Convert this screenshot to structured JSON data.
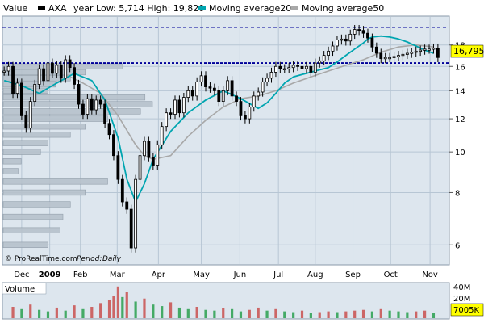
{
  "colors": {
    "panel_bg": "#dde6ee",
    "grid": "#b7c6d4",
    "price": "#000000",
    "ma20": "#00a5b0",
    "ma50": "#a8a8a8",
    "volume_up": "#cc6666",
    "volume_down": "#44aa66",
    "level_line": "#000099",
    "profile_bar": "#b7c2cc"
  },
  "header": {
    "value_label": "Value",
    "symbol": "AXA",
    "range_text": "year Low: 5,714 High: 19,820",
    "ma20_label": "Moving average20",
    "ma50_label": "Moving average50"
  },
  "footer": {
    "copyright": "© ProRealTime.com",
    "period_label": "Period:",
    "period_value": "Daily"
  },
  "volume": {
    "label": "Volume",
    "axis_max_label": "40M",
    "axis_mid_label": "20M",
    "last_value_label": "7005K"
  },
  "last_price_label": "16,795",
  "chart_data": {
    "type": "line",
    "title": "AXA",
    "scale": "log",
    "ylim": [
      5.4,
      21
    ],
    "y_ticks": [
      6,
      8,
      10,
      12,
      14,
      16,
      18
    ],
    "x_tick_labels": [
      "Dec",
      "2009",
      "Feb",
      "Mar",
      "Apr",
      "May",
      "Jun",
      "Jul",
      "Aug",
      "Sep",
      "Oct",
      "Nov"
    ],
    "x_tick_positions": [
      1,
      4.2,
      7.7,
      11.9,
      16.6,
      21.5,
      25.9,
      30.3,
      34.5,
      38.8,
      43.1,
      47.6
    ],
    "x_range": [
      -1.2,
      49.8
    ],
    "reference_levels": [
      19.82,
      16.3
    ],
    "series": [
      {
        "name": "AXA",
        "x": [
          -1,
          -0.5,
          0,
          0.5,
          1,
          1.5,
          2,
          2.5,
          3,
          3.5,
          4,
          4.5,
          5,
          5.5,
          6,
          6.5,
          7,
          7.5,
          8,
          8.5,
          9,
          9.5,
          10,
          10.5,
          11,
          11.5,
          12,
          12.5,
          13,
          13.5,
          14,
          14.5,
          15,
          15.5,
          16,
          16.5,
          17,
          17.5,
          18,
          18.5,
          19,
          19.5,
          20,
          20.5,
          21,
          21.5,
          22,
          22.5,
          23,
          23.5,
          24,
          24.5,
          25,
          25.5,
          26,
          26.5,
          27,
          27.5,
          28,
          28.5,
          29,
          29.5,
          30,
          30.5,
          31,
          31.5,
          32,
          32.5,
          33,
          33.5,
          34,
          34.5,
          35,
          35.5,
          36,
          36.5,
          37,
          37.5,
          38,
          38.5,
          39,
          39.5,
          40,
          40.5,
          41,
          41.5,
          42,
          42.5,
          43,
          43.5,
          44,
          44.5,
          45,
          45.5,
          46,
          46.5,
          47,
          47.5,
          48,
          48.5
        ],
        "values": [
          15.6,
          16.0,
          13.8,
          14.6,
          12.2,
          11.4,
          13.2,
          14.5,
          15.8,
          14.8,
          16.3,
          15.4,
          16.1,
          15.0,
          16.6,
          15.9,
          14.5,
          13.0,
          12.3,
          13.4,
          12.6,
          13.3,
          13.0,
          11.7,
          11.0,
          9.8,
          8.6,
          7.6,
          7.3,
          5.9,
          8.6,
          9.8,
          10.6,
          9.7,
          9.3,
          10.4,
          11.5,
          12.4,
          12.3,
          13.3,
          12.4,
          13.5,
          14.0,
          13.6,
          14.7,
          15.2,
          14.3,
          14.2,
          14.0,
          13.2,
          14.0,
          14.8,
          13.6,
          13.2,
          12.2,
          12.0,
          12.8,
          13.6,
          13.9,
          14.7,
          15.0,
          15.5,
          16.0,
          15.8,
          15.8,
          15.9,
          16.1,
          16.0,
          15.8,
          16.0,
          15.5,
          16.3,
          16.5,
          17.0,
          17.4,
          17.9,
          18.5,
          18.6,
          18.4,
          19.1,
          19.6,
          19.5,
          19.2,
          18.7,
          17.8,
          17.2,
          16.7,
          16.8,
          16.8,
          16.9,
          17.0,
          17.1,
          17.2,
          17.3,
          17.4,
          17.5,
          17.6,
          17.6,
          17.7,
          16.8
        ]
      },
      {
        "name": "Moving average20",
        "x": [
          -1,
          1,
          3,
          5,
          7,
          9,
          10.5,
          12,
          13,
          14,
          15,
          16,
          18,
          20,
          22,
          24,
          25,
          26,
          28,
          29,
          30,
          31,
          32,
          33,
          34,
          35,
          36,
          37,
          38,
          39,
          40,
          40.5,
          41,
          42,
          43,
          44,
          45,
          46,
          47,
          48
        ],
        "values": [
          14.8,
          14.4,
          13.8,
          14.6,
          15.4,
          14.8,
          13.3,
          10.8,
          8.6,
          7.6,
          8.4,
          9.6,
          11.2,
          12.4,
          13.3,
          14.0,
          13.7,
          13.4,
          12.7,
          13.1,
          13.8,
          14.6,
          15.1,
          15.3,
          15.5,
          15.7,
          15.9,
          16.4,
          17.0,
          17.6,
          18.2,
          18.6,
          18.8,
          18.9,
          18.8,
          18.6,
          18.3,
          17.9,
          17.5,
          17.2
        ]
      },
      {
        "name": "Moving average50",
        "x": [
          6,
          8,
          10,
          12,
          14,
          15,
          16,
          18,
          20,
          22,
          24,
          26,
          28,
          30,
          32,
          34,
          36,
          38,
          40,
          42,
          44,
          46,
          48
        ],
        "values": [
          15.3,
          14.6,
          13.8,
          12.2,
          10.4,
          9.8,
          9.6,
          9.8,
          10.9,
          11.9,
          12.8,
          13.4,
          13.6,
          14.0,
          14.6,
          15.1,
          15.6,
          16.1,
          16.6,
          17.3,
          17.8,
          18.0,
          17.8
        ]
      }
    ],
    "volume_series": {
      "name": "Volume",
      "unit": "M",
      "ylim": [
        0,
        45
      ],
      "x": [
        0,
        1,
        2,
        3,
        4,
        5,
        6,
        7,
        8,
        9,
        10,
        11,
        11.5,
        12,
        12.5,
        13,
        14,
        15,
        16,
        17,
        18,
        19,
        20,
        21,
        22,
        23,
        24,
        25,
        26,
        27,
        28,
        29,
        30,
        31,
        32,
        33,
        34,
        35,
        36,
        37,
        38,
        39,
        40,
        41,
        42,
        43,
        44,
        45,
        46,
        47,
        48
      ],
      "values": [
        15,
        12,
        18,
        11,
        9,
        14,
        10,
        17,
        12,
        15,
        20,
        24,
        30,
        42,
        28,
        35,
        22,
        26,
        18,
        16,
        21,
        14,
        12,
        15,
        11,
        10,
        13,
        12,
        9,
        11,
        14,
        10,
        12,
        9,
        8,
        10,
        7,
        8,
        9,
        8,
        9,
        10,
        11,
        9,
        12,
        10,
        9,
        8,
        9,
        10,
        7
      ]
    },
    "profile_bars": {
      "price_levels": [
        16.0,
        15.5,
        15.0,
        14.5,
        14.0,
        13.5,
        13.0,
        12.5,
        12.0,
        11.5,
        11.0,
        10.5,
        10.0,
        9.5,
        9.0,
        8.5,
        8.0,
        7.5,
        7.0,
        6.5,
        6.0
      ],
      "relative_volume": [
        0.8,
        0.55,
        0.45,
        0.35,
        0.3,
        0.95,
        1.0,
        0.92,
        0.7,
        0.55,
        0.45,
        0.3,
        0.25,
        0.12,
        0.1,
        0.7,
        0.55,
        0.45,
        0.4,
        0.38,
        0.3
      ]
    }
  }
}
